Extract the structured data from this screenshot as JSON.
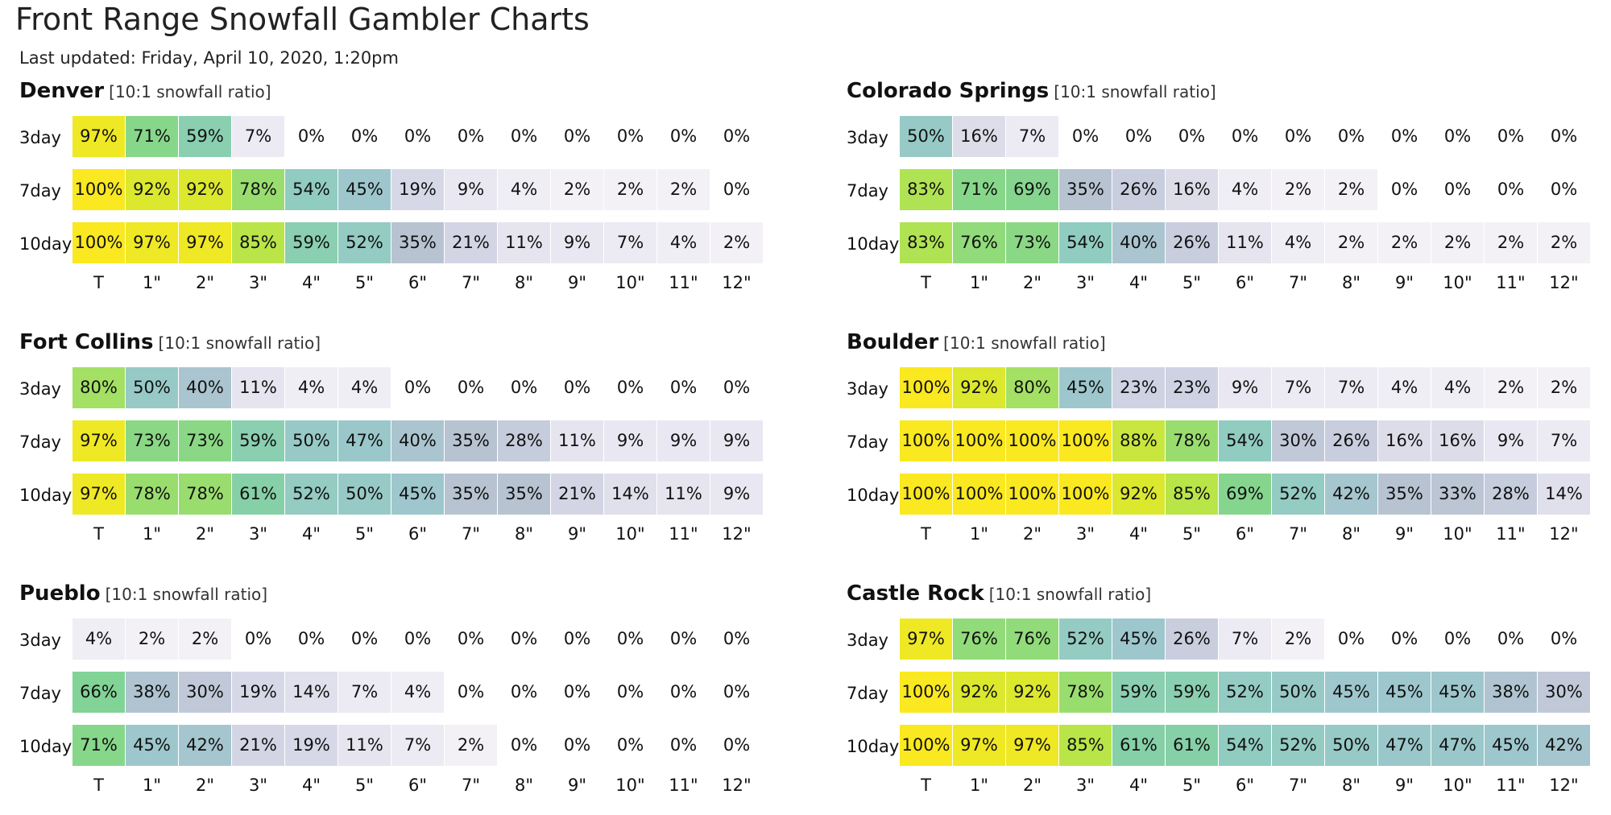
{
  "title": "Front Range Snowfall Gambler Charts",
  "last_updated": "Last updated: Friday, April 10, 2020, 1:20pm",
  "chart_data": [
    {
      "type": "heatmap",
      "title": "Denver",
      "subtitle": "[10:1 snowfall ratio]",
      "x_categories": [
        "T",
        "1\"",
        "2\"",
        "3\"",
        "4\"",
        "5\"",
        "6\"",
        "7\"",
        "8\"",
        "9\"",
        "10\"",
        "11\"",
        "12\""
      ],
      "y_categories": [
        "3day",
        "7day",
        "10day"
      ],
      "values": [
        [
          97,
          71,
          59,
          7,
          0,
          0,
          0,
          0,
          0,
          0,
          0,
          0,
          0
        ],
        [
          100,
          92,
          92,
          78,
          54,
          45,
          19,
          9,
          4,
          2,
          2,
          2,
          0
        ],
        [
          100,
          97,
          97,
          85,
          59,
          52,
          35,
          21,
          11,
          9,
          7,
          4,
          2
        ]
      ]
    },
    {
      "type": "heatmap",
      "title": "Colorado Springs",
      "subtitle": "[10:1 snowfall ratio]",
      "x_categories": [
        "T",
        "1\"",
        "2\"",
        "3\"",
        "4\"",
        "5\"",
        "6\"",
        "7\"",
        "8\"",
        "9\"",
        "10\"",
        "11\"",
        "12\""
      ],
      "y_categories": [
        "3day",
        "7day",
        "10day"
      ],
      "values": [
        [
          50,
          16,
          7,
          0,
          0,
          0,
          0,
          0,
          0,
          0,
          0,
          0,
          0
        ],
        [
          83,
          71,
          69,
          35,
          26,
          16,
          4,
          2,
          2,
          0,
          0,
          0,
          0
        ],
        [
          83,
          76,
          73,
          54,
          40,
          26,
          11,
          4,
          2,
          2,
          2,
          2,
          2
        ]
      ]
    },
    {
      "type": "heatmap",
      "title": "Fort Collins",
      "subtitle": "[10:1 snowfall ratio]",
      "x_categories": [
        "T",
        "1\"",
        "2\"",
        "3\"",
        "4\"",
        "5\"",
        "6\"",
        "7\"",
        "8\"",
        "9\"",
        "10\"",
        "11\"",
        "12\""
      ],
      "y_categories": [
        "3day",
        "7day",
        "10day"
      ],
      "values": [
        [
          80,
          50,
          40,
          11,
          4,
          4,
          0,
          0,
          0,
          0,
          0,
          0,
          0
        ],
        [
          97,
          73,
          73,
          59,
          50,
          47,
          40,
          35,
          28,
          11,
          9,
          9,
          9
        ],
        [
          97,
          78,
          78,
          61,
          52,
          50,
          45,
          35,
          35,
          21,
          14,
          11,
          9
        ]
      ]
    },
    {
      "type": "heatmap",
      "title": "Boulder",
      "subtitle": "[10:1 snowfall ratio]",
      "x_categories": [
        "T",
        "1\"",
        "2\"",
        "3\"",
        "4\"",
        "5\"",
        "6\"",
        "7\"",
        "8\"",
        "9\"",
        "10\"",
        "11\"",
        "12\""
      ],
      "y_categories": [
        "3day",
        "7day",
        "10day"
      ],
      "values": [
        [
          100,
          92,
          80,
          45,
          23,
          23,
          9,
          7,
          7,
          4,
          4,
          2,
          2
        ],
        [
          100,
          100,
          100,
          100,
          88,
          78,
          54,
          30,
          26,
          16,
          16,
          9,
          7
        ],
        [
          100,
          100,
          100,
          100,
          92,
          85,
          69,
          52,
          42,
          35,
          33,
          28,
          14
        ]
      ]
    },
    {
      "type": "heatmap",
      "title": "Pueblo",
      "subtitle": "[10:1 snowfall ratio]",
      "x_categories": [
        "T",
        "1\"",
        "2\"",
        "3\"",
        "4\"",
        "5\"",
        "6\"",
        "7\"",
        "8\"",
        "9\"",
        "10\"",
        "11\"",
        "12\""
      ],
      "y_categories": [
        "3day",
        "7day",
        "10day"
      ],
      "values": [
        [
          4,
          2,
          2,
          0,
          0,
          0,
          0,
          0,
          0,
          0,
          0,
          0,
          0
        ],
        [
          66,
          38,
          30,
          19,
          14,
          7,
          4,
          0,
          0,
          0,
          0,
          0,
          0
        ],
        [
          71,
          45,
          42,
          21,
          19,
          11,
          7,
          2,
          0,
          0,
          0,
          0,
          0
        ]
      ]
    },
    {
      "type": "heatmap",
      "title": "Castle Rock",
      "subtitle": "[10:1 snowfall ratio]",
      "x_categories": [
        "T",
        "1\"",
        "2\"",
        "3\"",
        "4\"",
        "5\"",
        "6\"",
        "7\"",
        "8\"",
        "9\"",
        "10\"",
        "11\"",
        "12\""
      ],
      "y_categories": [
        "3day",
        "7day",
        "10day"
      ],
      "values": [
        [
          97,
          76,
          76,
          52,
          45,
          26,
          7,
          2,
          0,
          0,
          0,
          0,
          0
        ],
        [
          100,
          92,
          92,
          78,
          59,
          59,
          52,
          50,
          45,
          45,
          45,
          38,
          30
        ],
        [
          100,
          97,
          97,
          85,
          61,
          61,
          54,
          52,
          50,
          47,
          47,
          45,
          42
        ]
      ]
    }
  ]
}
